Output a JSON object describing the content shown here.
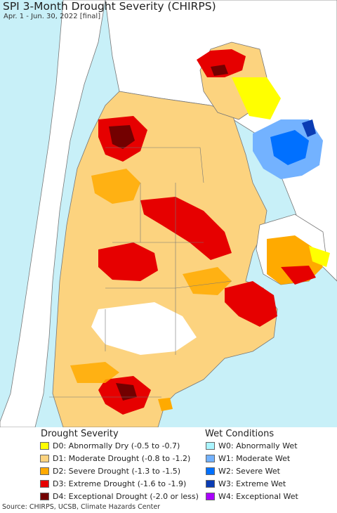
{
  "header": {
    "title": "SPI 3-Month Drought Severity (CHIRPS)",
    "subtitle": "Apr. 1 - Jun. 30, 2022 [final]"
  },
  "colors": {
    "ocean": "#c8f0f8",
    "land_neighbor": "#ffffff",
    "border": "#777777"
  },
  "legend": {
    "drought_title": "Drought Severity",
    "wet_title": "Wet Conditions",
    "drought": [
      {
        "label": "D0: Abnormally Dry (-0.5 to -0.7)",
        "color": "#ffff00"
      },
      {
        "label": "D1: Moderate Drought (-0.8 to -1.2)",
        "color": "#fcd37f"
      },
      {
        "label": "D2: Severe Drought (-1.3 to -1.5)",
        "color": "#ffaa00"
      },
      {
        "label": "D3: Extreme Drought (-1.6 to -1.9)",
        "color": "#e60000"
      },
      {
        "label": "D4: Exceptional Drought (-2.0 or less)",
        "color": "#730000"
      }
    ],
    "wet": [
      {
        "label": "W0: Abnormally Wet",
        "color": "#aaf5ff"
      },
      {
        "label": "W1: Moderate Wet",
        "color": "#73b2ff"
      },
      {
        "label": "W2: Severe Wet",
        "color": "#0070ff"
      },
      {
        "label": "W3: Extreme Wet",
        "color": "#0a3cb4"
      },
      {
        "label": "W4: Exceptional Wet",
        "color": "#aa00ff"
      }
    ]
  },
  "footer": {
    "source": "Source: CHIRPS, UCSB, Climate Hazards Center"
  }
}
